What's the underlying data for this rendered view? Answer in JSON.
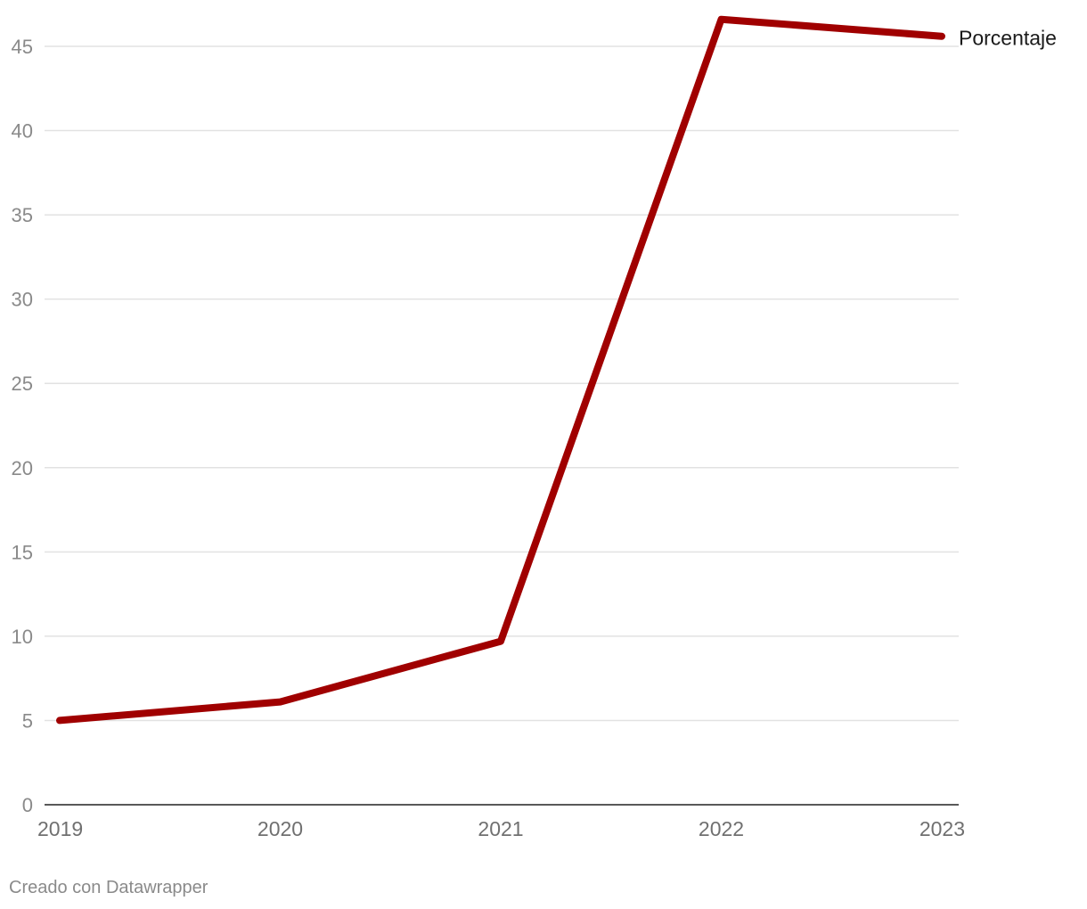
{
  "chart_data": {
    "type": "line",
    "title": "",
    "xlabel": "",
    "ylabel": "",
    "x": [
      "2019",
      "2020",
      "2021",
      "2022",
      "2023"
    ],
    "series": [
      {
        "name": "Porcentaje",
        "values": [
          5.0,
          6.1,
          9.7,
          46.6,
          45.6
        ],
        "color": "#a00000"
      }
    ],
    "ylim": [
      0,
      45
    ],
    "yticks": [
      "0",
      "5",
      "10",
      "15",
      "20",
      "25",
      "30",
      "35",
      "40",
      "45"
    ],
    "grid": true,
    "legend": "end-of-line label"
  },
  "footer": {
    "credit": "Creado con Datawrapper"
  }
}
